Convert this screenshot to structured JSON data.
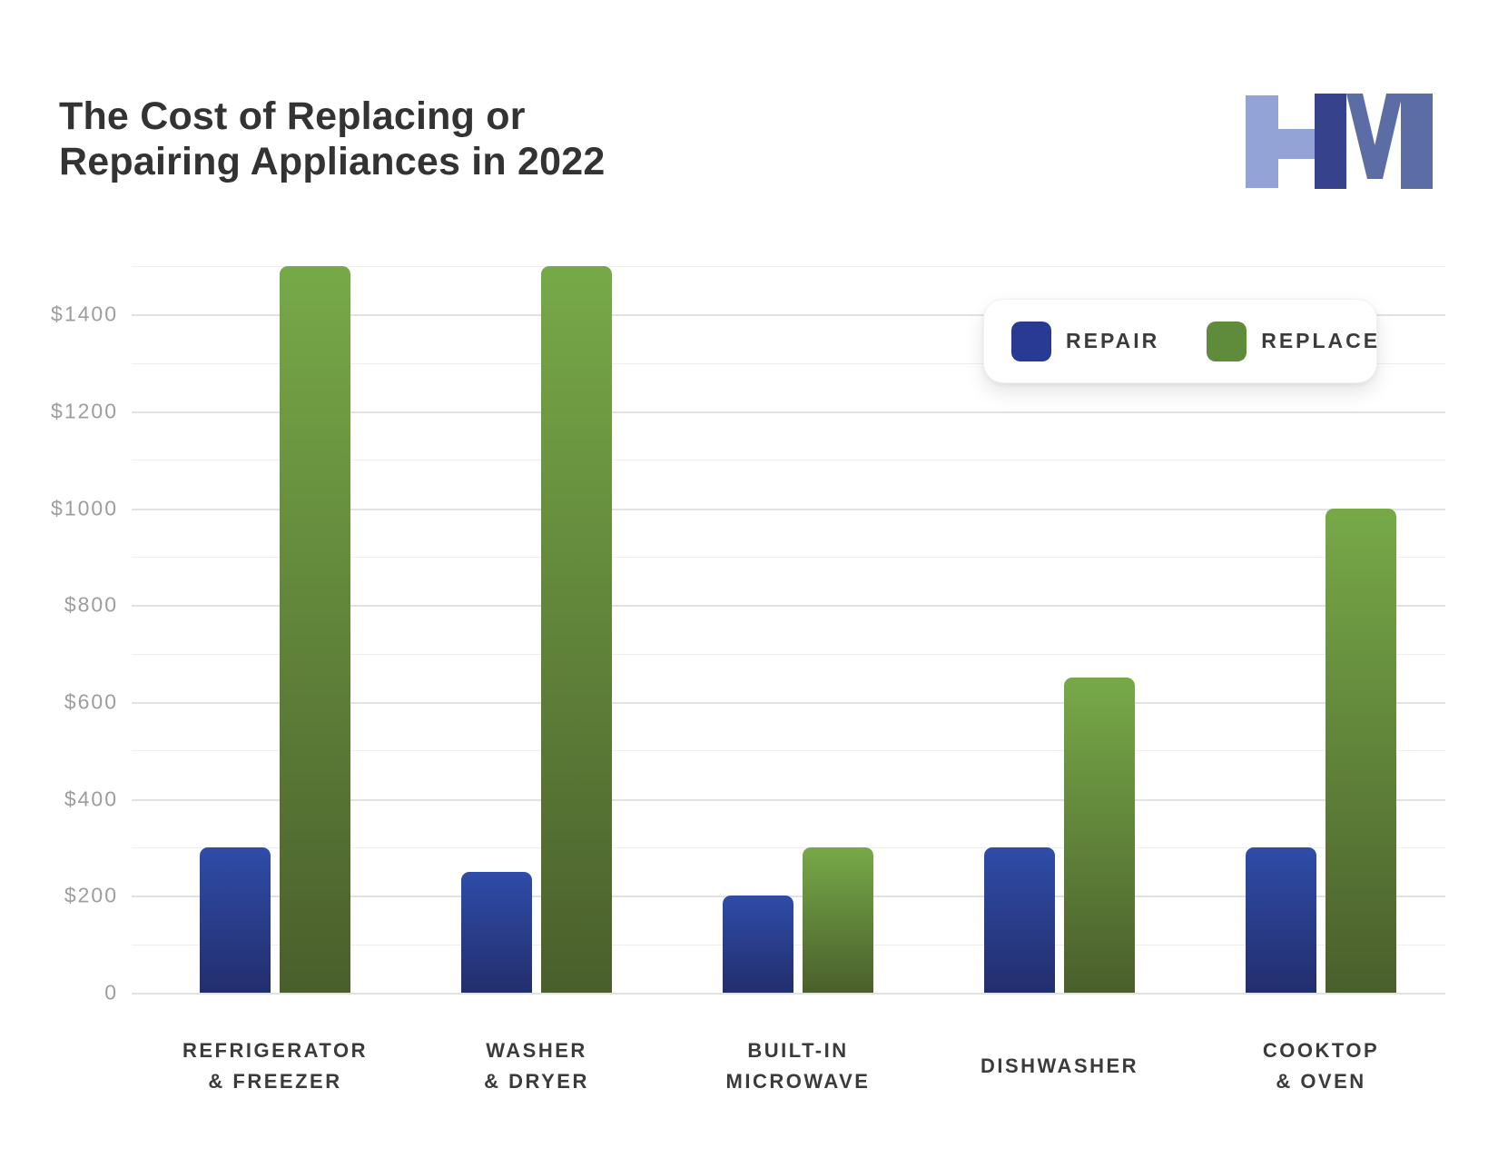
{
  "page": {
    "background": "#ffffff"
  },
  "header": {
    "title_lines": [
      "The Cost of Replacing or",
      "Repairing Appliances in 2022"
    ],
    "logo": {
      "letters": "HM",
      "light_color": "#94a3d6",
      "dark_color": "#37428d",
      "mid_color": "#5b6da4"
    }
  },
  "legend": {
    "items": [
      {
        "label": "REPAIR",
        "color": "#293a94"
      },
      {
        "label": "REPLACE",
        "color": "#5f8c3a"
      }
    ]
  },
  "chart_data": {
    "type": "bar",
    "title": "The Cost of Replacing or Repairing Appliances in 2022",
    "categories": [
      "Refrigerator & Freezer",
      "Washer & Dryer",
      "Built-in Microwave",
      "Dishwasher",
      "Cooktop & Oven"
    ],
    "category_label_lines": [
      [
        "REFRIGERATOR",
        "& FREEZER"
      ],
      [
        "WASHER",
        "& DRYER"
      ],
      [
        "BUILT-IN",
        "MICROWAVE"
      ],
      [
        "DISHWASHER"
      ],
      [
        "COOKTOP",
        "& OVEN"
      ]
    ],
    "series": [
      {
        "name": "REPAIR",
        "values": [
          300,
          250,
          200,
          300,
          300
        ],
        "color_top": "#2f4ca8",
        "color_bottom": "#232e6d"
      },
      {
        "name": "REPLACE",
        "values": [
          1500,
          1500,
          300,
          650,
          1000
        ],
        "color_top": "#77a948",
        "color_bottom": "#4a5f2c"
      }
    ],
    "xlabel": "",
    "ylabel": "",
    "ylim": [
      0,
      1500
    ],
    "grid": true,
    "grid_step": 100,
    "major_grid_color": "#e2e2e2",
    "minor_grid_color": "#efefef",
    "y_ticks": [
      {
        "value": 0,
        "label": "0"
      },
      {
        "value": 200,
        "label": "$200"
      },
      {
        "value": 400,
        "label": "$400"
      },
      {
        "value": 600,
        "label": "$600"
      },
      {
        "value": 800,
        "label": "$800"
      },
      {
        "value": 1000,
        "label": "$1000"
      },
      {
        "value": 1200,
        "label": "$1200"
      },
      {
        "value": 1400,
        "label": "$1400"
      }
    ],
    "legend_position": "top-right",
    "currency": "USD"
  }
}
